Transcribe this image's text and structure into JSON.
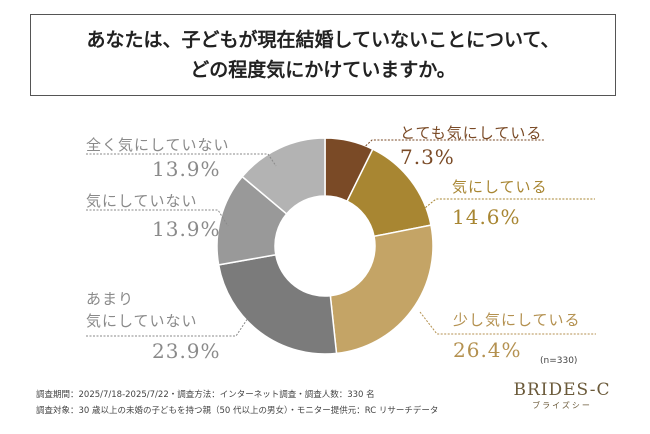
{
  "title": {
    "line1": "あなたは、子どもが現在結婚していないことについて、",
    "line2": "どの程度気にかけていますか。"
  },
  "colors": {
    "accent": "#7a4a26",
    "brand": "#6b5a3a"
  },
  "chart_data": {
    "type": "pie",
    "title": "あなたは、子どもが現在結婚していないことについて、どの程度気にかけていますか。",
    "sample_size": "(n=330)",
    "slices": [
      {
        "label": "とても気にしている",
        "value": 7.3,
        "pct_label": "7.3%",
        "color": "#7a4a26",
        "label_color": "#7a4a26"
      },
      {
        "label": "気にしている",
        "value": 14.6,
        "pct_label": "14.6%",
        "color": "#a88632",
        "label_color": "#a88632"
      },
      {
        "label": "少し気にしている",
        "value": 26.4,
        "pct_label": "26.4%",
        "color": "#c4a466",
        "label_color": "#b49150"
      },
      {
        "label": "あまり 気にしていない",
        "label_lines": [
          "あまり",
          "気にしていない"
        ],
        "value": 23.9,
        "pct_label": "23.9%",
        "color": "#7b7b7b",
        "label_color": "#8a8a8a"
      },
      {
        "label": "気にしていない",
        "value": 13.9,
        "pct_label": "13.9%",
        "color": "#999999",
        "label_color": "#8a8a8a"
      },
      {
        "label": "全く気にしていない",
        "value": 13.9,
        "pct_label": "13.9%",
        "color": "#b3b3b3",
        "label_color": "#8a8a8a"
      }
    ],
    "legend": "none"
  },
  "footer": {
    "line1": "調査期間：2025/7/18-2025/7/22・調査方法：インターネット調査・調査人数：330 名",
    "line2": "調査対象：30 歳以上の未婚の子どもを持つ親（50 代以上の男女）・モニター提供元：RC リサーチデータ"
  },
  "brand": {
    "main": "BRIDES-C",
    "sub": "ブライズシー"
  }
}
